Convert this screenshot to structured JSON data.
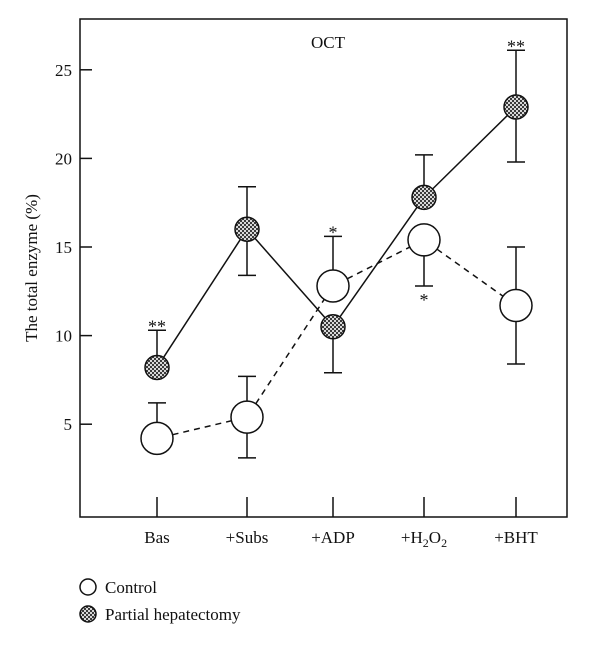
{
  "chart_data": {
    "type": "line",
    "title": "OCT",
    "ylabel": "The total enzyme (%)",
    "xlabel": "",
    "ylim": [
      0,
      27
    ],
    "yticks": [
      5,
      10,
      15,
      20,
      25
    ],
    "categories": [
      "Bas",
      "+Subs",
      "+ADP",
      "+H2O2",
      "+BHT"
    ],
    "series": [
      {
        "name": "Control",
        "line_style": "dashed",
        "marker": "open-circle",
        "values": [
          4.2,
          5.4,
          12.8,
          15.4,
          11.7
        ],
        "error_upper": [
          6.2,
          7.7,
          15.6,
          15.4,
          15.0
        ],
        "error_lower": [
          4.2,
          3.1,
          12.8,
          12.8,
          8.4
        ],
        "annotations": [
          {
            "category": "+H2O2",
            "text": "*",
            "position": "below"
          }
        ]
      },
      {
        "name": "Partial hepatectomy",
        "line_style": "solid",
        "marker": "checkered-circle",
        "values": [
          8.2,
          16.0,
          10.5,
          17.8,
          22.9
        ],
        "error_upper": [
          10.3,
          18.4,
          10.5,
          20.2,
          26.1
        ],
        "error_lower": [
          8.2,
          13.4,
          7.9,
          17.8,
          19.8
        ],
        "annotations": [
          {
            "category": "Bas",
            "text": "**",
            "position": "above"
          },
          {
            "category": "+ADP",
            "text": "*",
            "position": "above-control"
          },
          {
            "category": "+BHT",
            "text": "**",
            "position": "above"
          }
        ]
      }
    ],
    "legend": {
      "position": "bottom-left",
      "entries": [
        "Control",
        "Partial hepatectomy"
      ]
    },
    "colors": {
      "line": "#111111",
      "control_fill": "#ffffff",
      "ph_dark": "#3a3a3a",
      "ph_light": "#d8d8d8"
    }
  }
}
